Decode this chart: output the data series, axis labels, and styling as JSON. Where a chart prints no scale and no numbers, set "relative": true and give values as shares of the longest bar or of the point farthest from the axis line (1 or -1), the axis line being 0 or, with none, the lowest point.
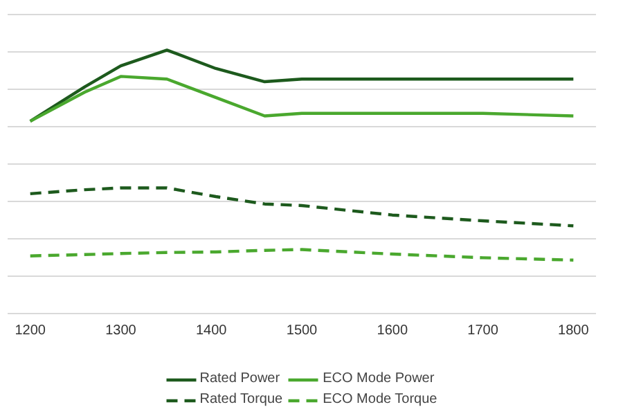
{
  "chart_data": {
    "type": "line",
    "relative": true,
    "x": [
      1200,
      1260,
      1300,
      1351,
      1405,
      1459,
      1500,
      1600,
      1700,
      1800
    ],
    "xlim": [
      1175,
      1825
    ],
    "xticks": [
      1200,
      1300,
      1400,
      1500,
      1600,
      1700,
      1800
    ],
    "grid": "y",
    "legend": "bottom",
    "marker": "none",
    "series": [
      {
        "name": "Rated Power",
        "color": "#1d5a1d",
        "line_style": "solid",
        "values": [
          0.73,
          0.86,
          0.94,
          1.0,
          0.93,
          0.88,
          0.89,
          0.89,
          0.89,
          0.89
        ]
      },
      {
        "name": "ECO Mode Power",
        "color": "#4aa82e",
        "line_style": "solid",
        "values": [
          0.73,
          0.84,
          0.9,
          0.89,
          0.82,
          0.75,
          0.76,
          0.76,
          0.76,
          0.75
        ]
      },
      {
        "name": "Rated Torque",
        "color": "#1d5a1d",
        "line_style": "dashed",
        "values": [
          0.455,
          0.47,
          0.477,
          0.477,
          0.444,
          0.416,
          0.41,
          0.374,
          0.352,
          0.333
        ]
      },
      {
        "name": "ECO Mode Torque",
        "color": "#4aa82e",
        "line_style": "dashed",
        "values": [
          0.219,
          0.224,
          0.228,
          0.232,
          0.234,
          0.24,
          0.243,
          0.226,
          0.212,
          0.203
        ]
      }
    ]
  }
}
